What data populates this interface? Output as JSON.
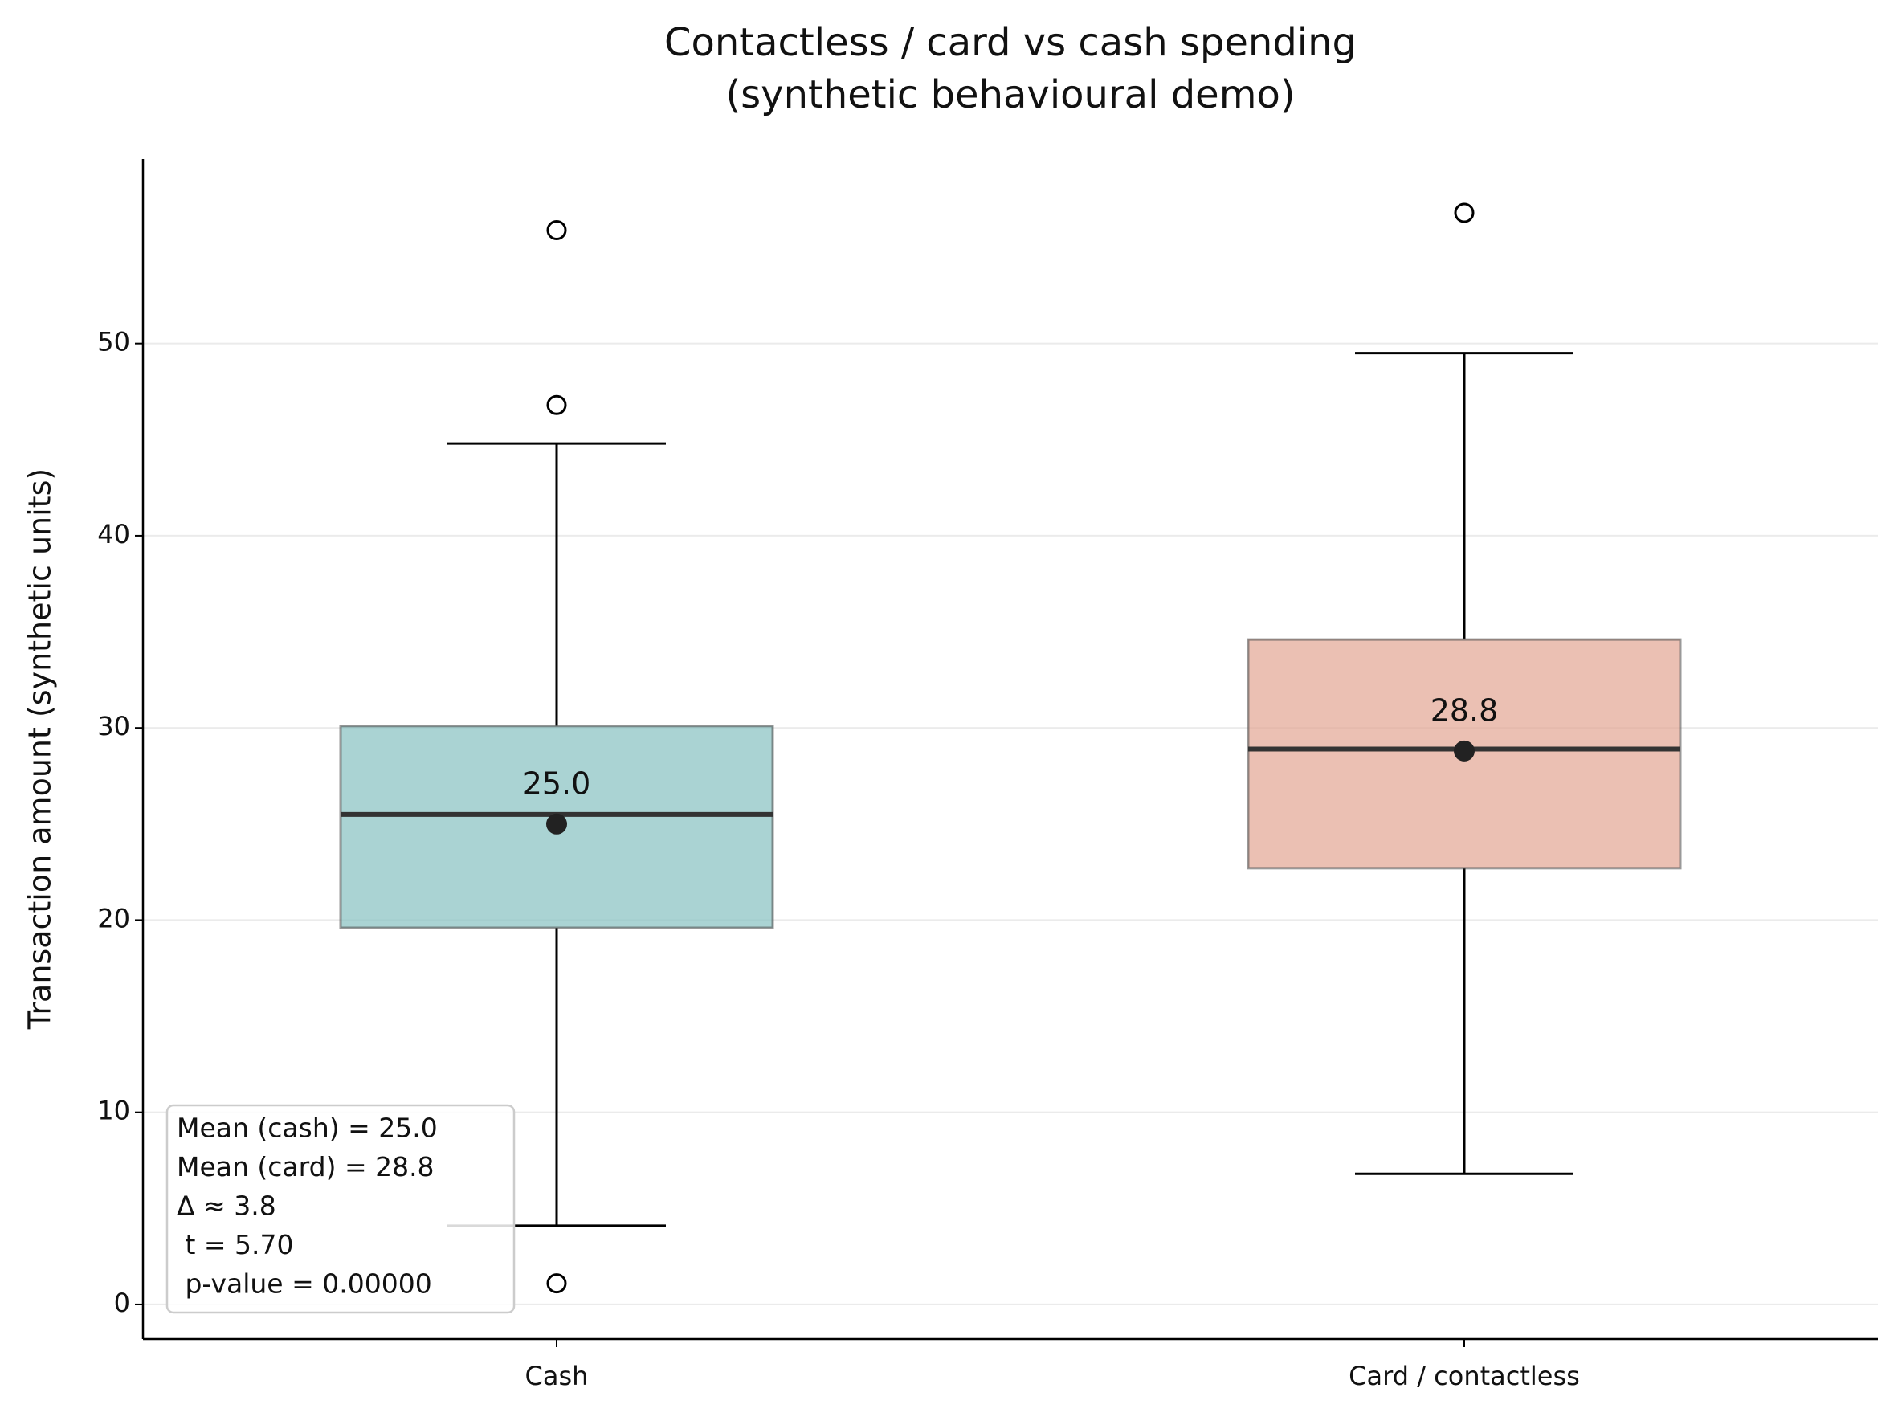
{
  "chart_data": {
    "type": "box",
    "title": [
      "Contactless / card vs cash spending",
      "(synthetic behavioural demo)"
    ],
    "y_label": "Transaction amount (synthetic units)",
    "categories": [
      "Cash",
      "Card / contactless"
    ],
    "boxes": [
      {
        "whislo": 4.1,
        "q1": 19.6,
        "med": 25.5,
        "q3": 30.1,
        "whishi": 44.8,
        "mean": 25.0,
        "mean_label": "25.0",
        "fliers": [
          55.9,
          46.8,
          1.1
        ],
        "color": "#86c0c1"
      },
      {
        "whislo": 6.8,
        "q1": 22.7,
        "med": 28.9,
        "q3": 34.6,
        "whishi": 49.5,
        "mean": 28.8,
        "mean_label": "28.8",
        "fliers": [
          56.8
        ],
        "color": "#e3a593"
      }
    ],
    "ylim": [
      -1.8,
      59.6
    ],
    "yticks": [
      0,
      10,
      20,
      30,
      40,
      50
    ],
    "grid": true,
    "annotation": [
      "Mean (cash) = 25.0",
      "Mean (card) = 28.8",
      "Δ ≈ 3.8",
      " t = 5.70",
      " p-value = 0.00000"
    ]
  }
}
